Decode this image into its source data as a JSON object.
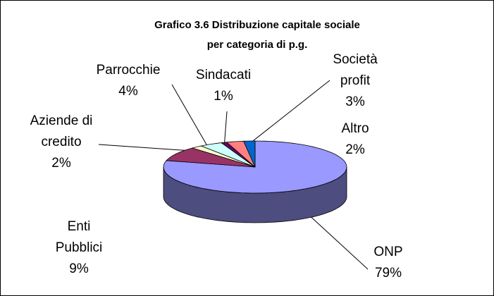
{
  "chart_data": {
    "type": "pie3d",
    "title": "Grafico 3.6 Distribuzione capitale sociale per categoria di p.g.",
    "categories": [
      "ONP",
      "Enti Pubblici",
      "Aziende di credito",
      "Parrocchie",
      "Sindacati",
      "Società profit",
      "Altro"
    ],
    "values": [
      79,
      9,
      2,
      4,
      1,
      3,
      2
    ],
    "value_labels": [
      "79%",
      "9%",
      "2%",
      "4%",
      "1%",
      "3%",
      "2%"
    ],
    "colors": [
      "#9999ff",
      "#993366",
      "#ffffcc",
      "#ccffff",
      "#660066",
      "#ff8080",
      "#0066cc"
    ]
  }
}
